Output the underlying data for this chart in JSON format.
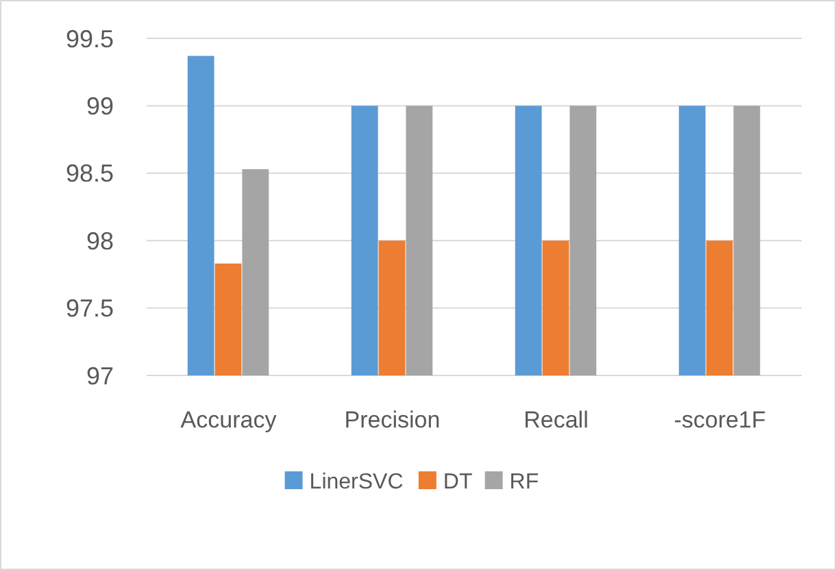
{
  "chart_data": {
    "type": "bar",
    "categories": [
      "Accuracy",
      "Precision",
      "Recall",
      "-score1F"
    ],
    "series": [
      {
        "name": "LinerSVC",
        "color": "#5b9bd5",
        "values": [
          99.37,
          99,
          99,
          99
        ]
      },
      {
        "name": "DT",
        "color": "#ed7d31",
        "values": [
          97.83,
          98,
          98,
          98
        ]
      },
      {
        "name": "RF",
        "color": "#a5a5a5",
        "values": [
          98.53,
          99,
          99,
          99
        ]
      }
    ],
    "ylim": [
      97,
      99.5
    ],
    "yticks": [
      97,
      97.5,
      98,
      98.5,
      99,
      99.5
    ],
    "grid": "y",
    "legend": "bottom"
  }
}
